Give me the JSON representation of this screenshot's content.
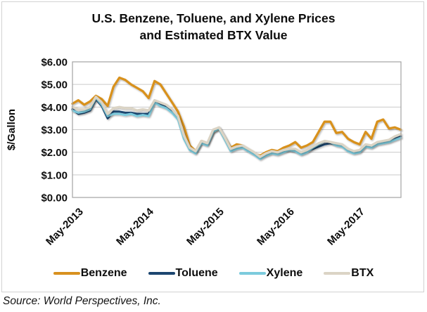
{
  "figure": {
    "title_line1": "U.S. Benzene, Toluene, and Xylene Prices",
    "title_line2": "and Estimated BTX Value",
    "source": "Source: World Perspectives, Inc."
  },
  "chart_data": {
    "type": "line",
    "title": "U.S. Benzene, Toluene, and Xylene Prices and Estimated BTX Value",
    "xlabel": "",
    "ylabel": "$/Gallon",
    "ylim": [
      0,
      6
    ],
    "ytick_labels": [
      "$6.00",
      "$5.00",
      "$4.00",
      "$3.00",
      "$2.00",
      "$1.00",
      "$0.00"
    ],
    "xtick_labels": [
      "May-2013",
      "May-2014",
      "May-2015",
      "May-2016",
      "May-2017"
    ],
    "x_start": "2013-05",
    "x_end": "2018-01",
    "x_interval": "1 month",
    "n_points": 57,
    "grid": "horizontal major gridlines on",
    "legend_position": "bottom",
    "colors": {
      "gridline": "#c9c9c9",
      "plot_border": "#a3a3a3",
      "figure_border": "#d2d2d2"
    },
    "series": [
      {
        "name": "Benzene",
        "color": "#D8911F",
        "values": [
          4.15,
          4.3,
          4.1,
          4.25,
          4.5,
          4.35,
          4.05,
          4.9,
          5.3,
          5.2,
          5.0,
          4.85,
          4.7,
          4.4,
          5.15,
          5.0,
          4.6,
          4.2,
          3.8,
          3.15,
          2.3,
          2.05,
          2.5,
          2.4,
          2.9,
          3.05,
          2.65,
          2.2,
          2.35,
          2.3,
          2.1,
          1.95,
          1.85,
          2.0,
          2.1,
          2.05,
          2.2,
          2.3,
          2.45,
          2.2,
          2.3,
          2.45,
          2.9,
          3.35,
          3.35,
          2.85,
          2.9,
          2.6,
          2.45,
          2.35,
          2.9,
          2.6,
          3.35,
          3.45,
          3.05,
          3.1,
          3.0
        ]
      },
      {
        "name": "Toluene",
        "color": "#1C4670",
        "values": [
          3.9,
          3.7,
          3.75,
          3.85,
          4.35,
          4.05,
          3.5,
          3.8,
          3.8,
          3.75,
          3.75,
          3.7,
          3.7,
          3.7,
          4.3,
          4.1,
          4.0,
          3.8,
          3.55,
          2.7,
          2.15,
          2.0,
          2.45,
          2.35,
          2.95,
          3.1,
          2.6,
          2.1,
          2.2,
          2.25,
          2.1,
          1.95,
          1.8,
          1.9,
          2.0,
          1.95,
          2.05,
          2.1,
          2.05,
          1.95,
          2.05,
          2.15,
          2.25,
          2.35,
          2.4,
          2.35,
          2.3,
          2.1,
          2.0,
          2.05,
          2.3,
          2.25,
          2.4,
          2.45,
          2.5,
          2.6,
          2.7
        ]
      },
      {
        "name": "Xylene",
        "color": "#7CCBDD",
        "values": [
          3.85,
          3.75,
          3.8,
          3.9,
          4.4,
          4.1,
          3.6,
          3.7,
          3.7,
          3.65,
          3.7,
          3.6,
          3.65,
          3.6,
          4.2,
          4.05,
          3.95,
          3.75,
          3.45,
          2.6,
          2.1,
          1.95,
          2.4,
          2.3,
          2.9,
          3.05,
          2.55,
          2.05,
          2.15,
          2.2,
          2.05,
          1.9,
          1.7,
          1.85,
          1.95,
          1.9,
          2.0,
          2.1,
          2.05,
          1.9,
          2.0,
          2.2,
          2.35,
          2.5,
          2.45,
          2.3,
          2.25,
          2.05,
          1.95,
          2.0,
          2.25,
          2.2,
          2.35,
          2.4,
          2.45,
          2.55,
          2.65
        ]
      },
      {
        "name": "BTX",
        "color": "#DBD4C5",
        "values": [
          4.0,
          3.9,
          3.9,
          4.0,
          4.45,
          4.2,
          3.7,
          3.95,
          4.0,
          3.95,
          3.95,
          3.85,
          3.9,
          3.85,
          4.3,
          4.2,
          4.1,
          3.9,
          3.6,
          2.75,
          2.2,
          2.05,
          2.5,
          2.4,
          3.0,
          3.1,
          2.65,
          2.15,
          2.25,
          2.3,
          2.15,
          2.0,
          1.8,
          1.95,
          2.05,
          2.0,
          2.1,
          2.15,
          2.15,
          2.0,
          2.1,
          2.25,
          2.4,
          2.5,
          2.45,
          2.4,
          2.35,
          2.15,
          2.05,
          2.1,
          2.35,
          2.3,
          2.45,
          2.5,
          2.55,
          2.7,
          2.8
        ]
      }
    ]
  }
}
